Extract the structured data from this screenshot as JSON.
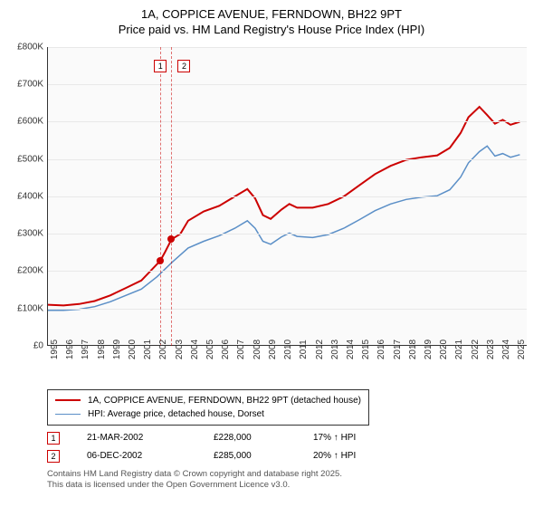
{
  "title_line1": "1A, COPPICE AVENUE, FERNDOWN, BH22 9PT",
  "title_line2": "Price paid vs. HM Land Registry's House Price Index (HPI)",
  "chart": {
    "type": "line",
    "plot_bg": "#fafafa",
    "grid_color": "#e8e8e8",
    "axis_color": "#333333",
    "y": {
      "min": 0,
      "max": 800000,
      "ticks": [
        0,
        100000,
        200000,
        300000,
        400000,
        500000,
        600000,
        700000,
        800000
      ],
      "labels": [
        "£0",
        "£100K",
        "£200K",
        "£300K",
        "£400K",
        "£500K",
        "£600K",
        "£700K",
        "£800K"
      ],
      "label_fontsize": 10
    },
    "x": {
      "min": 1995,
      "max": 2025.8,
      "ticks": [
        1995,
        1996,
        1997,
        1998,
        1999,
        2000,
        2001,
        2002,
        2003,
        2004,
        2005,
        2006,
        2007,
        2008,
        2009,
        2010,
        2011,
        2012,
        2013,
        2014,
        2015,
        2016,
        2017,
        2018,
        2019,
        2020,
        2021,
        2022,
        2023,
        2024,
        2025
      ],
      "label_fontsize": 10
    },
    "series": [
      {
        "id": "price_paid",
        "label": "1A, COPPICE AVENUE, FERNDOWN, BH22 9PT (detached house)",
        "color": "#cc0000",
        "line_width": 2,
        "points": [
          [
            1995,
            110000
          ],
          [
            1996,
            108000
          ],
          [
            1997,
            112000
          ],
          [
            1998,
            120000
          ],
          [
            1999,
            135000
          ],
          [
            2000,
            155000
          ],
          [
            2001,
            175000
          ],
          [
            2002.22,
            228000
          ],
          [
            2002.5,
            250000
          ],
          [
            2002.93,
            285000
          ],
          [
            2003.5,
            300000
          ],
          [
            2004,
            335000
          ],
          [
            2005,
            360000
          ],
          [
            2006,
            375000
          ],
          [
            2007,
            400000
          ],
          [
            2007.8,
            420000
          ],
          [
            2008.3,
            395000
          ],
          [
            2008.8,
            350000
          ],
          [
            2009.3,
            340000
          ],
          [
            2010,
            365000
          ],
          [
            2010.5,
            380000
          ],
          [
            2011,
            370000
          ],
          [
            2012,
            370000
          ],
          [
            2013,
            380000
          ],
          [
            2014,
            400000
          ],
          [
            2015,
            430000
          ],
          [
            2016,
            460000
          ],
          [
            2017,
            482000
          ],
          [
            2018,
            498000
          ],
          [
            2019,
            505000
          ],
          [
            2020,
            510000
          ],
          [
            2020.8,
            530000
          ],
          [
            2021.5,
            570000
          ],
          [
            2022,
            612000
          ],
          [
            2022.7,
            640000
          ],
          [
            2023.2,
            618000
          ],
          [
            2023.7,
            595000
          ],
          [
            2024.2,
            605000
          ],
          [
            2024.7,
            592000
          ],
          [
            2025.3,
            600000
          ]
        ]
      },
      {
        "id": "hpi",
        "label": "HPI: Average price, detached house, Dorset",
        "color": "#5b8fc7",
        "line_width": 1.5,
        "points": [
          [
            1995,
            95000
          ],
          [
            1996,
            95000
          ],
          [
            1997,
            98000
          ],
          [
            1998,
            105000
          ],
          [
            1999,
            118000
          ],
          [
            2000,
            135000
          ],
          [
            2001,
            152000
          ],
          [
            2002,
            185000
          ],
          [
            2003,
            225000
          ],
          [
            2004,
            262000
          ],
          [
            2005,
            280000
          ],
          [
            2006,
            295000
          ],
          [
            2007,
            315000
          ],
          [
            2007.8,
            335000
          ],
          [
            2008.3,
            315000
          ],
          [
            2008.8,
            280000
          ],
          [
            2009.3,
            272000
          ],
          [
            2010,
            292000
          ],
          [
            2010.5,
            302000
          ],
          [
            2011,
            293000
          ],
          [
            2012,
            290000
          ],
          [
            2013,
            298000
          ],
          [
            2014,
            315000
          ],
          [
            2015,
            338000
          ],
          [
            2016,
            362000
          ],
          [
            2017,
            380000
          ],
          [
            2018,
            392000
          ],
          [
            2019,
            398000
          ],
          [
            2020,
            402000
          ],
          [
            2020.8,
            418000
          ],
          [
            2021.5,
            452000
          ],
          [
            2022,
            490000
          ],
          [
            2022.7,
            520000
          ],
          [
            2023.2,
            535000
          ],
          [
            2023.7,
            508000
          ],
          [
            2024.2,
            515000
          ],
          [
            2024.7,
            505000
          ],
          [
            2025.3,
            512000
          ]
        ]
      }
    ],
    "sale_markers": [
      {
        "n": "1",
        "x": 2002.22,
        "y": 228000,
        "color": "#cc0000"
      },
      {
        "n": "2",
        "x": 2002.93,
        "y": 285000,
        "color": "#cc0000"
      }
    ],
    "marker_flag_y": 14
  },
  "legend": {
    "border_color": "#333333",
    "rows": [
      {
        "color": "#cc0000",
        "width": 2,
        "label": "1A, COPPICE AVENUE, FERNDOWN, BH22 9PT (detached house)"
      },
      {
        "color": "#5b8fc7",
        "width": 1.5,
        "label": "HPI: Average price, detached house, Dorset"
      }
    ]
  },
  "sales": [
    {
      "n": "1",
      "color": "#cc0000",
      "date": "21-MAR-2002",
      "price": "£228,000",
      "delta": "17% ↑ HPI"
    },
    {
      "n": "2",
      "color": "#cc0000",
      "date": "06-DEC-2002",
      "price": "£285,000",
      "delta": "20% ↑ HPI"
    }
  ],
  "footer_line1": "Contains HM Land Registry data © Crown copyright and database right 2025.",
  "footer_line2": "This data is licensed under the Open Government Licence v3.0."
}
